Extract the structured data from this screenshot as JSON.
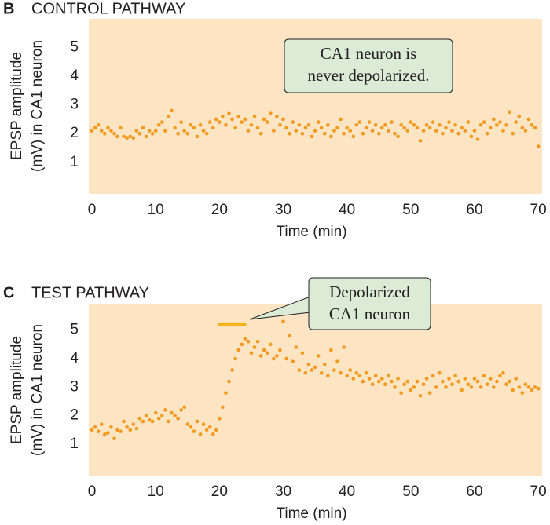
{
  "chart_data": [
    {
      "type": "scatter",
      "panel_label": "B",
      "title": "CONTROL PATHWAY",
      "xlabel": "Time (min)",
      "ylabel": [
        "EPSP amplitude",
        "(mV) in CA1 neuron"
      ],
      "annotation": [
        "CA1 neuron is",
        "never depolarized."
      ],
      "xlim": [
        -0.5,
        70.6
      ],
      "ylim": [
        -0.1,
        6
      ],
      "xticks": [
        0,
        10,
        20,
        30,
        40,
        50,
        60,
        70
      ],
      "yticks": [
        1,
        2,
        3,
        4,
        5
      ],
      "background": "#fde4c2",
      "color": "#f29a1e",
      "x": [
        0,
        0.5,
        1,
        1.5,
        2,
        2.5,
        3,
        3.5,
        4,
        4.5,
        5,
        5.5,
        6,
        6.5,
        7,
        7.5,
        8,
        8.5,
        9,
        9.5,
        10,
        10.5,
        11,
        11.5,
        12,
        12.5,
        13,
        13.5,
        14,
        14.5,
        15,
        15.5,
        16,
        16.5,
        17,
        17.5,
        18,
        18.5,
        19,
        19.5,
        20,
        20.5,
        21,
        21.5,
        22,
        22.5,
        23,
        23.5,
        24,
        24.5,
        25,
        25.5,
        26,
        26.5,
        27,
        27.5,
        28,
        28.5,
        29,
        29.5,
        30,
        30.5,
        31,
        31.5,
        32,
        32.5,
        33,
        33.5,
        34,
        34.5,
        35,
        35.5,
        36,
        36.5,
        37,
        37.5,
        38,
        38.5,
        39,
        39.5,
        40,
        40.5,
        41,
        41.5,
        42,
        42.5,
        43,
        43.5,
        44,
        44.5,
        45,
        45.5,
        46,
        46.5,
        47,
        47.5,
        48,
        48.5,
        49,
        49.5,
        50,
        50.5,
        51,
        51.5,
        52,
        52.5,
        53,
        53.5,
        54,
        54.5,
        55,
        55.5,
        56,
        56.5,
        57,
        57.5,
        58,
        58.5,
        59,
        59.5,
        60,
        60.5,
        61,
        61.5,
        62,
        62.5,
        63,
        63.5,
        64,
        64.5,
        65,
        65.5,
        66,
        66.5,
        67,
        67.5,
        68,
        68.5,
        69,
        69.5,
        70
      ],
      "values": [
        2.1,
        2.2,
        2.3,
        2.1,
        2.0,
        2.2,
        2.1,
        2.0,
        1.9,
        2.2,
        1.9,
        1.85,
        1.9,
        1.85,
        2.1,
        2.0,
        2.2,
        1.9,
        2.1,
        2.0,
        2.1,
        2.3,
        2.4,
        2.1,
        2.6,
        2.8,
        2.2,
        2.0,
        2.4,
        2.1,
        2.0,
        2.3,
        2.2,
        1.9,
        2.3,
        2.1,
        2.0,
        2.4,
        2.2,
        2.5,
        2.4,
        2.6,
        2.3,
        2.7,
        2.5,
        2.2,
        2.6,
        2.4,
        2.5,
        2.1,
        2.3,
        2.6,
        2.2,
        2.0,
        2.5,
        2.4,
        2.7,
        2.1,
        2.6,
        2.3,
        2.5,
        2.2,
        2.0,
        2.4,
        2.1,
        2.3,
        2.0,
        2.2,
        2.3,
        1.9,
        2.1,
        2.4,
        2.2,
        2.0,
        2.3,
        1.9,
        2.1,
        2.2,
        2.5,
        2.0,
        2.2,
        2.1,
        1.9,
        2.3,
        2.4,
        2.0,
        2.2,
        2.4,
        2.1,
        2.3,
        2.0,
        2.2,
        2.3,
        2.1,
        2.4,
        2.0,
        1.9,
        2.3,
        2.2,
        2.1,
        2.4,
        2.3,
        2.2,
        1.75,
        2.1,
        2.3,
        2.2,
        2.4,
        2.1,
        2.3,
        2.0,
        2.2,
        2.4,
        2.1,
        2.3,
        2.0,
        2.2,
        2.1,
        2.4,
        1.9,
        2.1,
        1.8,
        2.3,
        2.4,
        2.0,
        2.2,
        2.5,
        2.3,
        2.4,
        2.1,
        2.3,
        2.75,
        2.0,
        2.4,
        2.6,
        2.2,
        2.1,
        2.5,
        2.3,
        2.2,
        1.55
      ]
    },
    {
      "type": "scatter",
      "panel_label": "C",
      "title": "TEST PATHWAY",
      "xlabel": "Time (min)",
      "ylabel": [
        "EPSP amplitude",
        "(mV) in CA1 neuron"
      ],
      "annotation": [
        "Depolarized",
        "CA1 neuron"
      ],
      "depolarization_bar": {
        "x": [
          19.7,
          24.2
        ],
        "y": 5.2,
        "color": "#f5b21a"
      },
      "xlim": [
        -0.5,
        70.6
      ],
      "ylim": [
        -0.1,
        5.9
      ],
      "xticks": [
        0,
        10,
        20,
        30,
        40,
        50,
        60,
        70
      ],
      "yticks": [
        1,
        2,
        3,
        4,
        5
      ],
      "background": "#fde4c2",
      "color": "#f29a1e",
      "x": [
        0,
        0.5,
        1,
        1.5,
        2,
        2.5,
        3,
        3.5,
        4,
        4.5,
        5,
        5.5,
        6,
        6.5,
        7,
        7.5,
        8,
        8.5,
        9,
        9.5,
        10,
        10.5,
        11,
        11.5,
        12,
        12.5,
        13,
        13.5,
        14,
        14.5,
        15,
        15.5,
        16,
        16.5,
        17,
        17.5,
        18,
        18.5,
        19,
        19.5,
        20,
        20.5,
        21,
        21.5,
        22,
        22.5,
        23,
        23.5,
        24,
        24.5,
        25,
        25.5,
        26,
        26.5,
        27,
        27.5,
        28,
        28.5,
        29,
        29.5,
        30,
        30.5,
        31,
        31.5,
        32,
        32.5,
        33,
        33.5,
        34,
        34.5,
        35,
        35.5,
        36,
        36.5,
        37,
        37.5,
        38,
        38.5,
        39,
        39.5,
        40,
        40.5,
        41,
        41.5,
        42,
        42.5,
        43,
        43.5,
        44,
        44.5,
        45,
        45.5,
        46,
        46.5,
        47,
        47.5,
        48,
        48.5,
        49,
        49.5,
        50,
        50.5,
        51,
        51.5,
        52,
        52.5,
        53,
        53.5,
        54,
        54.5,
        55,
        55.5,
        56,
        56.5,
        57,
        57.5,
        58,
        58.5,
        59,
        59.5,
        60,
        60.5,
        61,
        61.5,
        62,
        62.5,
        63,
        63.5,
        64,
        64.5,
        65,
        65.5,
        66,
        66.5,
        67,
        67.5,
        68,
        68.5,
        69,
        69.5,
        70
      ],
      "values": [
        1.5,
        1.6,
        1.45,
        1.7,
        1.35,
        1.4,
        1.6,
        1.2,
        1.5,
        1.45,
        1.8,
        1.6,
        1.5,
        1.7,
        1.55,
        1.9,
        1.8,
        2.0,
        1.85,
        1.8,
        2.1,
        1.9,
        2.0,
        2.2,
        1.8,
        2.1,
        2.0,
        1.9,
        2.2,
        2.3,
        1.7,
        1.6,
        1.45,
        1.8,
        1.35,
        1.7,
        1.5,
        1.6,
        1.35,
        1.5,
        1.9,
        2.3,
        2.8,
        3.2,
        3.6,
        4.0,
        4.3,
        4.5,
        4.7,
        4.6,
        4.2,
        4.4,
        4.6,
        4.1,
        4.3,
        4.2,
        4.5,
        4.0,
        4.1,
        4.3,
        5.3,
        4.0,
        4.8,
        3.9,
        4.4,
        3.6,
        4.2,
        3.5,
        3.8,
        3.6,
        3.7,
        4.1,
        3.5,
        3.8,
        3.4,
        4.3,
        3.6,
        3.9,
        3.5,
        4.4,
        3.4,
        3.6,
        3.3,
        3.5,
        3.4,
        3.2,
        3.5,
        3.3,
        3.1,
        3.4,
        3.2,
        3.3,
        3.1,
        3.4,
        3.2,
        3.0,
        3.3,
        2.8,
        3.1,
        3.2,
        2.9,
        3.0,
        3.2,
        2.7,
        3.1,
        3.3,
        2.8,
        3.4,
        3.0,
        3.5,
        3.2,
        3.0,
        3.3,
        3.1,
        3.4,
        3.2,
        2.9,
        3.3,
        3.1,
        3.0,
        3.3,
        3.2,
        3.0,
        3.4,
        3.1,
        3.3,
        3.0,
        3.2,
        3.4,
        3.5,
        3.1,
        3.2,
        2.9,
        3.3,
        3.0,
        2.8,
        3.1,
        3.0,
        2.9,
        3.0,
        2.95
      ]
    }
  ]
}
